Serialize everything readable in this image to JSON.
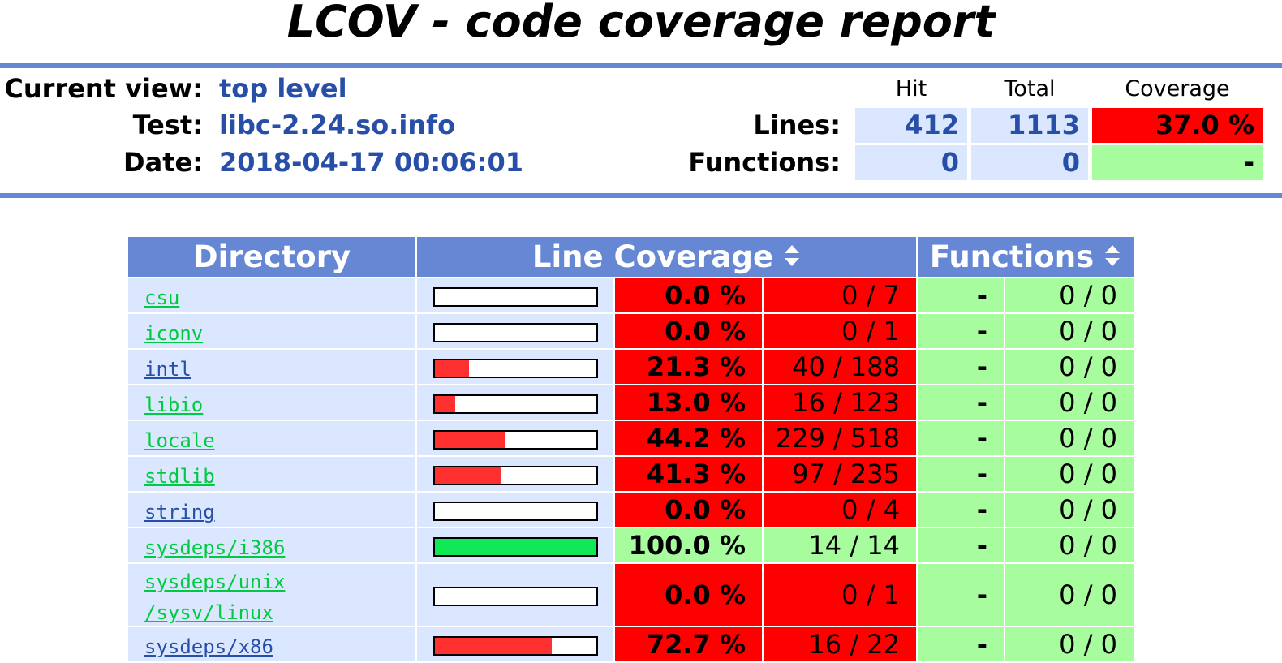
{
  "title": "LCOV - code coverage report",
  "header": {
    "current_view_label": "Current view:",
    "current_view_value": "top level",
    "test_label": "Test:",
    "test_value": "libc-2.24.so.info",
    "date_label": "Date:",
    "date_value": "2018-04-17 00:06:01"
  },
  "summary": {
    "col_hit": "Hit",
    "col_total": "Total",
    "col_coverage": "Coverage",
    "lines_label": "Lines:",
    "lines_hit": "412",
    "lines_total": "1113",
    "lines_coverage": "37.0 %",
    "functions_label": "Functions:",
    "functions_hit": "0",
    "functions_total": "0",
    "functions_coverage": "-"
  },
  "table": {
    "col_directory": "Directory",
    "col_line_coverage": "Line Coverage",
    "col_functions": "Functions",
    "rows": [
      {
        "name": "csu",
        "link_class": "lo",
        "fill": 0.0,
        "pct": "0.0 %",
        "lines": "0 / 7",
        "fpct": "-",
        "funcs": "0 / 0"
      },
      {
        "name": "iconv",
        "link_class": "lo",
        "fill": 0.0,
        "pct": "0.0 %",
        "lines": "0 / 1",
        "fpct": "-",
        "funcs": "0 / 0"
      },
      {
        "name": "intl",
        "link_class": "med",
        "fill": 0.213,
        "pct": "21.3 %",
        "lines": "40 / 188",
        "fpct": "-",
        "funcs": "0 / 0"
      },
      {
        "name": "libio",
        "link_class": "lo",
        "fill": 0.13,
        "pct": "13.0 %",
        "lines": "16 / 123",
        "fpct": "-",
        "funcs": "0 / 0"
      },
      {
        "name": "locale",
        "link_class": "lo",
        "fill": 0.442,
        "pct": "44.2 %",
        "lines": "229 / 518",
        "fpct": "-",
        "funcs": "0 / 0"
      },
      {
        "name": "stdlib",
        "link_class": "lo",
        "fill": 0.413,
        "pct": "41.3 %",
        "lines": "97 / 235",
        "fpct": "-",
        "funcs": "0 / 0"
      },
      {
        "name": "string",
        "link_class": "med",
        "fill": 0.0,
        "pct": "0.0 %",
        "lines": "0 / 4",
        "fpct": "-",
        "funcs": "0 / 0"
      },
      {
        "name": "sysdeps/i386",
        "link_class": "lo",
        "fill": 1.0,
        "pct": "100.0 %",
        "lines": "14 / 14",
        "fpct": "-",
        "funcs": "0 / 0"
      },
      {
        "name_line1": "sysdeps/unix",
        "name_line2": "/sysv/linux",
        "link_class": "lo",
        "fill": 0.0,
        "pct": "0.0 %",
        "lines": "0 / 1",
        "fpct": "-",
        "funcs": "0 / 0"
      },
      {
        "name": "sysdeps/x86",
        "link_class": "med",
        "fill": 0.727,
        "pct": "72.7 %",
        "lines": "16 / 22",
        "fpct": "-",
        "funcs": "0 / 0"
      }
    ]
  },
  "colors": {
    "ruler": "#6688d4",
    "header_value": "#284fa8",
    "cell_blue": "#dae7fe",
    "coverage_low": "#ff0000",
    "coverage_high": "#a7fc9d",
    "bar_low": "#ff3030",
    "bar_high": "#10e858",
    "link_low": "#00cb40",
    "link_med": "#284fa8"
  }
}
